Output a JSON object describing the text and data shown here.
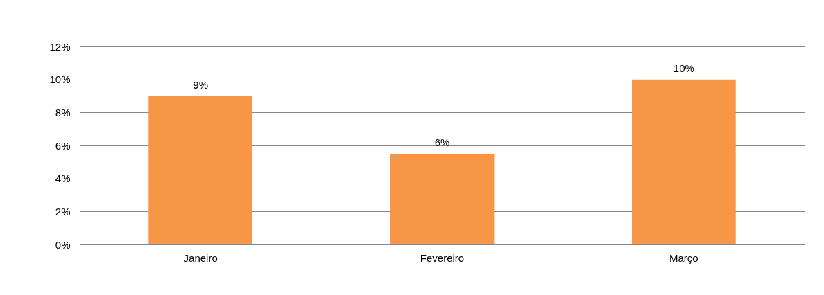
{
  "chart_data": {
    "type": "bar",
    "categories": [
      "Janeiro",
      "Fevereiro",
      "Março"
    ],
    "values": [
      9,
      5.5,
      10
    ],
    "value_labels": [
      "9%",
      "6%",
      "10%"
    ],
    "color": "#f79646",
    "ylim": [
      0,
      12
    ],
    "yticks": [
      {
        "value": 0,
        "label": "0%"
      },
      {
        "value": 2,
        "label": "2%"
      },
      {
        "value": 4,
        "label": "4%"
      },
      {
        "value": 6,
        "label": "6%"
      },
      {
        "value": 8,
        "label": "8%"
      },
      {
        "value": 10,
        "label": "10%"
      },
      {
        "value": 12,
        "label": "12%"
      }
    ],
    "grid": "y"
  }
}
